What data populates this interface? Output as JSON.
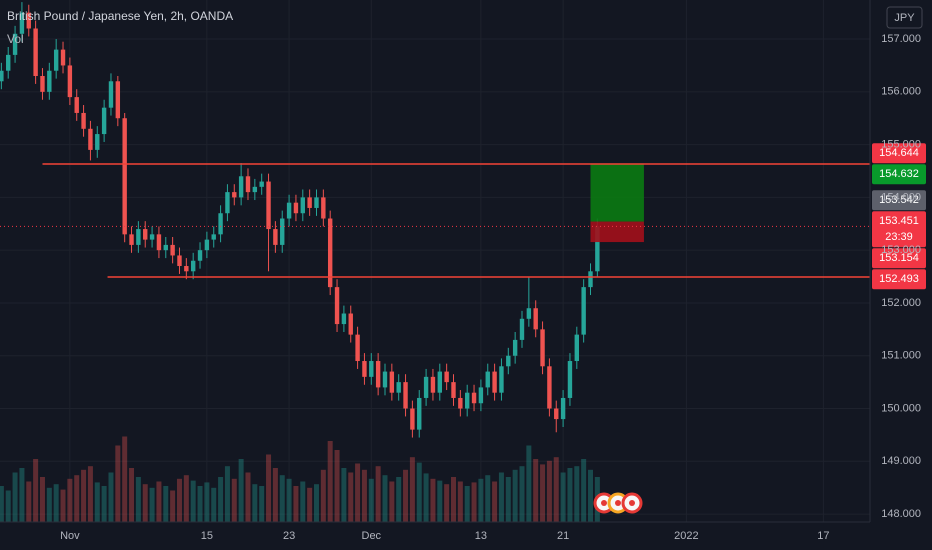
{
  "title": "British Pound / Japanese Yen, 2h, OANDA",
  "indicator": "Vol",
  "currency": "JPY",
  "chart_data": {
    "type": "candlestick",
    "open": [
      156.2,
      156.4,
      156.7,
      157.1,
      157.5,
      157.2,
      156.3,
      156.0,
      156.4,
      156.8,
      156.5,
      155.9,
      155.6,
      155.3,
      154.9,
      155.2,
      155.7,
      156.2,
      155.5,
      153.3,
      153.1,
      153.4,
      153.2,
      153.3,
      153.0,
      153.1,
      152.9,
      152.7,
      152.6,
      152.8,
      153.0,
      153.2,
      153.3,
      153.7,
      154.1,
      154.0,
      154.4,
      154.1,
      154.2,
      154.3,
      153.4,
      153.1,
      153.6,
      153.9,
      153.7,
      154.0,
      153.8,
      154.0,
      153.6,
      152.3,
      151.6,
      151.8,
      151.4,
      150.9,
      150.6,
      150.9,
      150.4,
      150.7,
      150.3,
      150.5,
      150.0,
      149.6,
      150.2,
      150.6,
      150.3,
      150.7,
      150.5,
      150.2,
      150.0,
      150.3,
      150.1,
      150.4,
      150.7,
      150.3,
      150.8,
      151.0,
      151.3,
      151.7,
      151.9,
      151.5,
      150.8,
      150.0,
      149.8,
      150.2,
      150.9,
      151.4,
      152.3,
      152.6
    ],
    "high": [
      156.55,
      156.85,
      157.25,
      157.7,
      157.65,
      157.35,
      156.45,
      156.55,
      157.0,
      156.95,
      156.65,
      156.05,
      155.75,
      155.45,
      155.35,
      155.85,
      156.35,
      156.3,
      155.6,
      153.45,
      153.55,
      153.55,
      153.45,
      153.45,
      153.25,
      153.25,
      153.05,
      152.85,
      152.95,
      153.15,
      153.35,
      153.45,
      153.85,
      154.25,
      154.25,
      154.65,
      154.55,
      154.35,
      154.45,
      154.45,
      153.55,
      153.75,
      154.05,
      154.05,
      154.15,
      154.15,
      154.15,
      154.15,
      153.75,
      152.45,
      151.95,
      151.95,
      151.55,
      151.05,
      151.05,
      151.05,
      150.85,
      150.85,
      150.65,
      150.65,
      150.15,
      150.35,
      150.75,
      150.75,
      150.85,
      150.85,
      150.65,
      150.35,
      150.45,
      150.45,
      150.55,
      150.85,
      150.85,
      150.95,
      151.15,
      151.45,
      151.85,
      152.5,
      152.05,
      151.65,
      150.95,
      150.15,
      150.35,
      151.05,
      151.55,
      152.45,
      152.75,
      153.6
    ],
    "low": [
      156.05,
      156.25,
      156.55,
      156.95,
      157.05,
      156.15,
      155.85,
      155.85,
      156.25,
      156.35,
      155.75,
      155.45,
      155.15,
      154.7,
      154.75,
      155.05,
      155.55,
      155.35,
      153.15,
      152.95,
      152.95,
      153.05,
      153.05,
      152.85,
      152.85,
      152.75,
      152.55,
      152.45,
      152.45,
      152.65,
      152.85,
      153.05,
      153.15,
      153.55,
      153.85,
      153.85,
      153.95,
      153.95,
      154.05,
      152.6,
      152.95,
      152.95,
      153.45,
      153.55,
      153.55,
      153.65,
      153.65,
      153.45,
      152.15,
      151.45,
      151.45,
      151.25,
      150.75,
      150.45,
      150.45,
      150.25,
      150.25,
      150.15,
      150.15,
      149.85,
      149.45,
      149.45,
      150.05,
      150.15,
      150.15,
      150.35,
      150.05,
      149.85,
      149.85,
      149.95,
      149.95,
      150.25,
      150.15,
      150.15,
      150.65,
      150.85,
      151.15,
      151.55,
      151.35,
      150.65,
      149.85,
      149.55,
      149.65,
      150.05,
      150.75,
      151.25,
      152.15,
      152.5
    ],
    "close": [
      156.4,
      156.7,
      157.1,
      157.5,
      157.2,
      156.3,
      156.0,
      156.4,
      156.8,
      156.5,
      155.9,
      155.6,
      155.3,
      154.9,
      155.2,
      155.7,
      156.2,
      155.5,
      153.3,
      153.1,
      153.4,
      153.2,
      153.3,
      153.0,
      153.1,
      152.9,
      152.7,
      152.6,
      152.8,
      153.0,
      153.2,
      153.3,
      153.7,
      154.1,
      154.0,
      154.4,
      154.1,
      154.2,
      154.3,
      153.4,
      153.1,
      153.6,
      153.9,
      153.7,
      154.0,
      153.8,
      154.0,
      153.6,
      152.3,
      151.6,
      151.8,
      151.4,
      150.9,
      150.6,
      150.9,
      150.4,
      150.7,
      150.3,
      150.5,
      150.0,
      149.6,
      150.2,
      150.6,
      150.3,
      150.7,
      150.5,
      150.2,
      150.0,
      150.3,
      150.1,
      150.4,
      150.7,
      150.3,
      150.8,
      151.0,
      151.3,
      151.7,
      151.9,
      151.5,
      150.8,
      150.0,
      149.8,
      150.2,
      150.9,
      151.4,
      152.3,
      152.6,
      153.45
    ],
    "volume": [
      40,
      35,
      55,
      60,
      45,
      70,
      50,
      38,
      42,
      36,
      48,
      52,
      58,
      62,
      44,
      40,
      55,
      85,
      95,
      60,
      50,
      42,
      38,
      45,
      40,
      35,
      48,
      52,
      46,
      40,
      44,
      38,
      50,
      62,
      48,
      70,
      55,
      42,
      40,
      75,
      60,
      52,
      48,
      40,
      45,
      38,
      42,
      58,
      90,
      80,
      60,
      55,
      65,
      58,
      48,
      62,
      52,
      45,
      50,
      58,
      72,
      66,
      54,
      48,
      46,
      42,
      50,
      45,
      40,
      44,
      48,
      52,
      45,
      55,
      50,
      58,
      62,
      85,
      70,
      64,
      68,
      72,
      55,
      60,
      62,
      70,
      58,
      50
    ],
    "up_color": "#26a69a",
    "down_color": "#ef5350",
    "xlim": [
      -0.2,
      126.8
    ],
    "xticks": [
      {
        "value": 10,
        "label": "Nov"
      },
      {
        "value": 30,
        "label": "15"
      },
      {
        "value": 42,
        "label": "23"
      },
      {
        "value": 54,
        "label": "Dec"
      },
      {
        "value": 70,
        "label": "13"
      },
      {
        "value": 82,
        "label": "21"
      },
      {
        "value": 100,
        "label": "2022"
      },
      {
        "value": 120,
        "label": "17"
      }
    ],
    "ylim": [
      147.85,
      157.74
    ],
    "yticks": [
      {
        "value": 148,
        "label": "148.000"
      },
      {
        "value": 149,
        "label": "149.000"
      },
      {
        "value": 150,
        "label": "150.000"
      },
      {
        "value": 151,
        "label": "151.000"
      },
      {
        "value": 152,
        "label": "152.000"
      },
      {
        "value": 153,
        "label": "153.000"
      },
      {
        "value": 154,
        "label": "154.000"
      },
      {
        "value": 155,
        "label": "155.000"
      },
      {
        "value": 156,
        "label": "156.000"
      },
      {
        "value": 157,
        "label": "157.000"
      }
    ],
    "vlim": [
      0,
      100
    ],
    "grid": true,
    "levels": [
      {
        "price": 154.632,
        "from_index": 6,
        "color": "#f44336",
        "tag_color": "#089a2b"
      },
      {
        "price": 152.493,
        "from_index": 15.5,
        "color": "#f44336",
        "tag_color": "#f23645"
      }
    ],
    "position": {
      "entry": 153.542,
      "target": 154.644,
      "stop": 153.154,
      "from_index": 86,
      "to_index": 93.8,
      "profit_color": "#0b7a12",
      "loss_color": "#a3101b",
      "target_tag_color": "#f23645",
      "entry_tag_color": "#5d606b",
      "stop_tag_color": "#f23645"
    },
    "last_price": 153.451,
    "last_price_color": "#f23645",
    "countdown": "23:39"
  }
}
